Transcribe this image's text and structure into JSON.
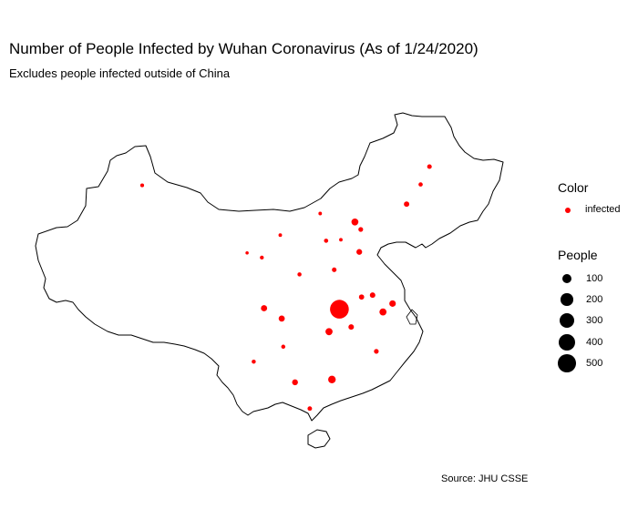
{
  "title": "Number of People Infected by Wuhan Coronavirus (As of 1/24/2020)",
  "subtitle": "Excludes people infected outside of China",
  "caption": "Source: JHU CSSE",
  "colors": {
    "infected": "#ff0000",
    "outline": "#000000"
  },
  "legend": {
    "color_title": "Color",
    "color_label": "infected",
    "size_title": "People",
    "sizes": [
      {
        "label": "100",
        "value": 100
      },
      {
        "label": "200",
        "value": 200
      },
      {
        "label": "300",
        "value": 300
      },
      {
        "label": "400",
        "value": 400
      },
      {
        "label": "500",
        "value": 500
      }
    ]
  },
  "chart_data": {
    "type": "scatter",
    "size_encoding": "People",
    "color_encoding": "infected",
    "points": [
      {
        "lon": 87.6,
        "lat": 43.8,
        "people": 3
      },
      {
        "lon": 126.5,
        "lat": 45.8,
        "people": 9
      },
      {
        "lon": 125.3,
        "lat": 43.9,
        "people": 6
      },
      {
        "lon": 123.4,
        "lat": 41.8,
        "people": 17
      },
      {
        "lon": 111.7,
        "lat": 40.8,
        "people": 2
      },
      {
        "lon": 116.4,
        "lat": 39.9,
        "people": 41
      },
      {
        "lon": 117.2,
        "lat": 39.1,
        "people": 10
      },
      {
        "lon": 114.5,
        "lat": 38.0,
        "people": 2
      },
      {
        "lon": 112.5,
        "lat": 37.9,
        "people": 6
      },
      {
        "lon": 106.3,
        "lat": 38.5,
        "people": 2
      },
      {
        "lon": 101.8,
        "lat": 36.6,
        "people": 1
      },
      {
        "lon": 103.8,
        "lat": 36.1,
        "people": 4
      },
      {
        "lon": 108.9,
        "lat": 34.3,
        "people": 5
      },
      {
        "lon": 113.6,
        "lat": 34.8,
        "people": 9
      },
      {
        "lon": 117.0,
        "lat": 36.7,
        "people": 21
      },
      {
        "lon": 118.8,
        "lat": 32.1,
        "people": 18
      },
      {
        "lon": 117.3,
        "lat": 31.9,
        "people": 15
      },
      {
        "lon": 121.5,
        "lat": 31.2,
        "people": 33
      },
      {
        "lon": 120.2,
        "lat": 30.3,
        "people": 43
      },
      {
        "lon": 114.3,
        "lat": 30.6,
        "people": 549
      },
      {
        "lon": 112.9,
        "lat": 28.2,
        "people": 43
      },
      {
        "lon": 115.9,
        "lat": 28.7,
        "people": 18
      },
      {
        "lon": 119.3,
        "lat": 26.1,
        "people": 10
      },
      {
        "lon": 106.5,
        "lat": 29.6,
        "people": 27
      },
      {
        "lon": 104.1,
        "lat": 30.7,
        "people": 28
      },
      {
        "lon": 106.7,
        "lat": 26.6,
        "people": 5
      },
      {
        "lon": 102.7,
        "lat": 25.0,
        "people": 5
      },
      {
        "lon": 108.3,
        "lat": 22.8,
        "people": 23
      },
      {
        "lon": 113.3,
        "lat": 23.1,
        "people": 53
      },
      {
        "lon": 110.3,
        "lat": 20.0,
        "people": 8
      }
    ]
  }
}
